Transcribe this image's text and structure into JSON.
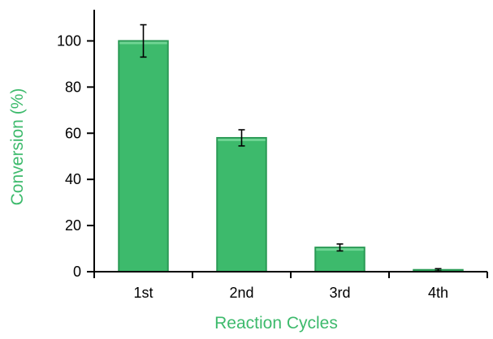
{
  "chart_data": {
    "type": "bar",
    "categories": [
      "1st",
      "2nd",
      "3rd",
      "4th"
    ],
    "values": [
      100,
      58,
      10.5,
      0.8
    ],
    "errors": [
      7,
      3.5,
      1.5,
      0.5
    ],
    "xlabel": "Reaction Cycles",
    "ylabel": "Conversion (%)",
    "ylim": [
      0,
      110
    ],
    "yticks": [
      0,
      20,
      40,
      60,
      80,
      100
    ],
    "grid": false,
    "legend": "none",
    "colors": {
      "bar_fill": "#3dba6c",
      "bar_edge": "#2a9a55",
      "bar_top": "#6fd494",
      "axis_title": "#3dba6c"
    }
  }
}
